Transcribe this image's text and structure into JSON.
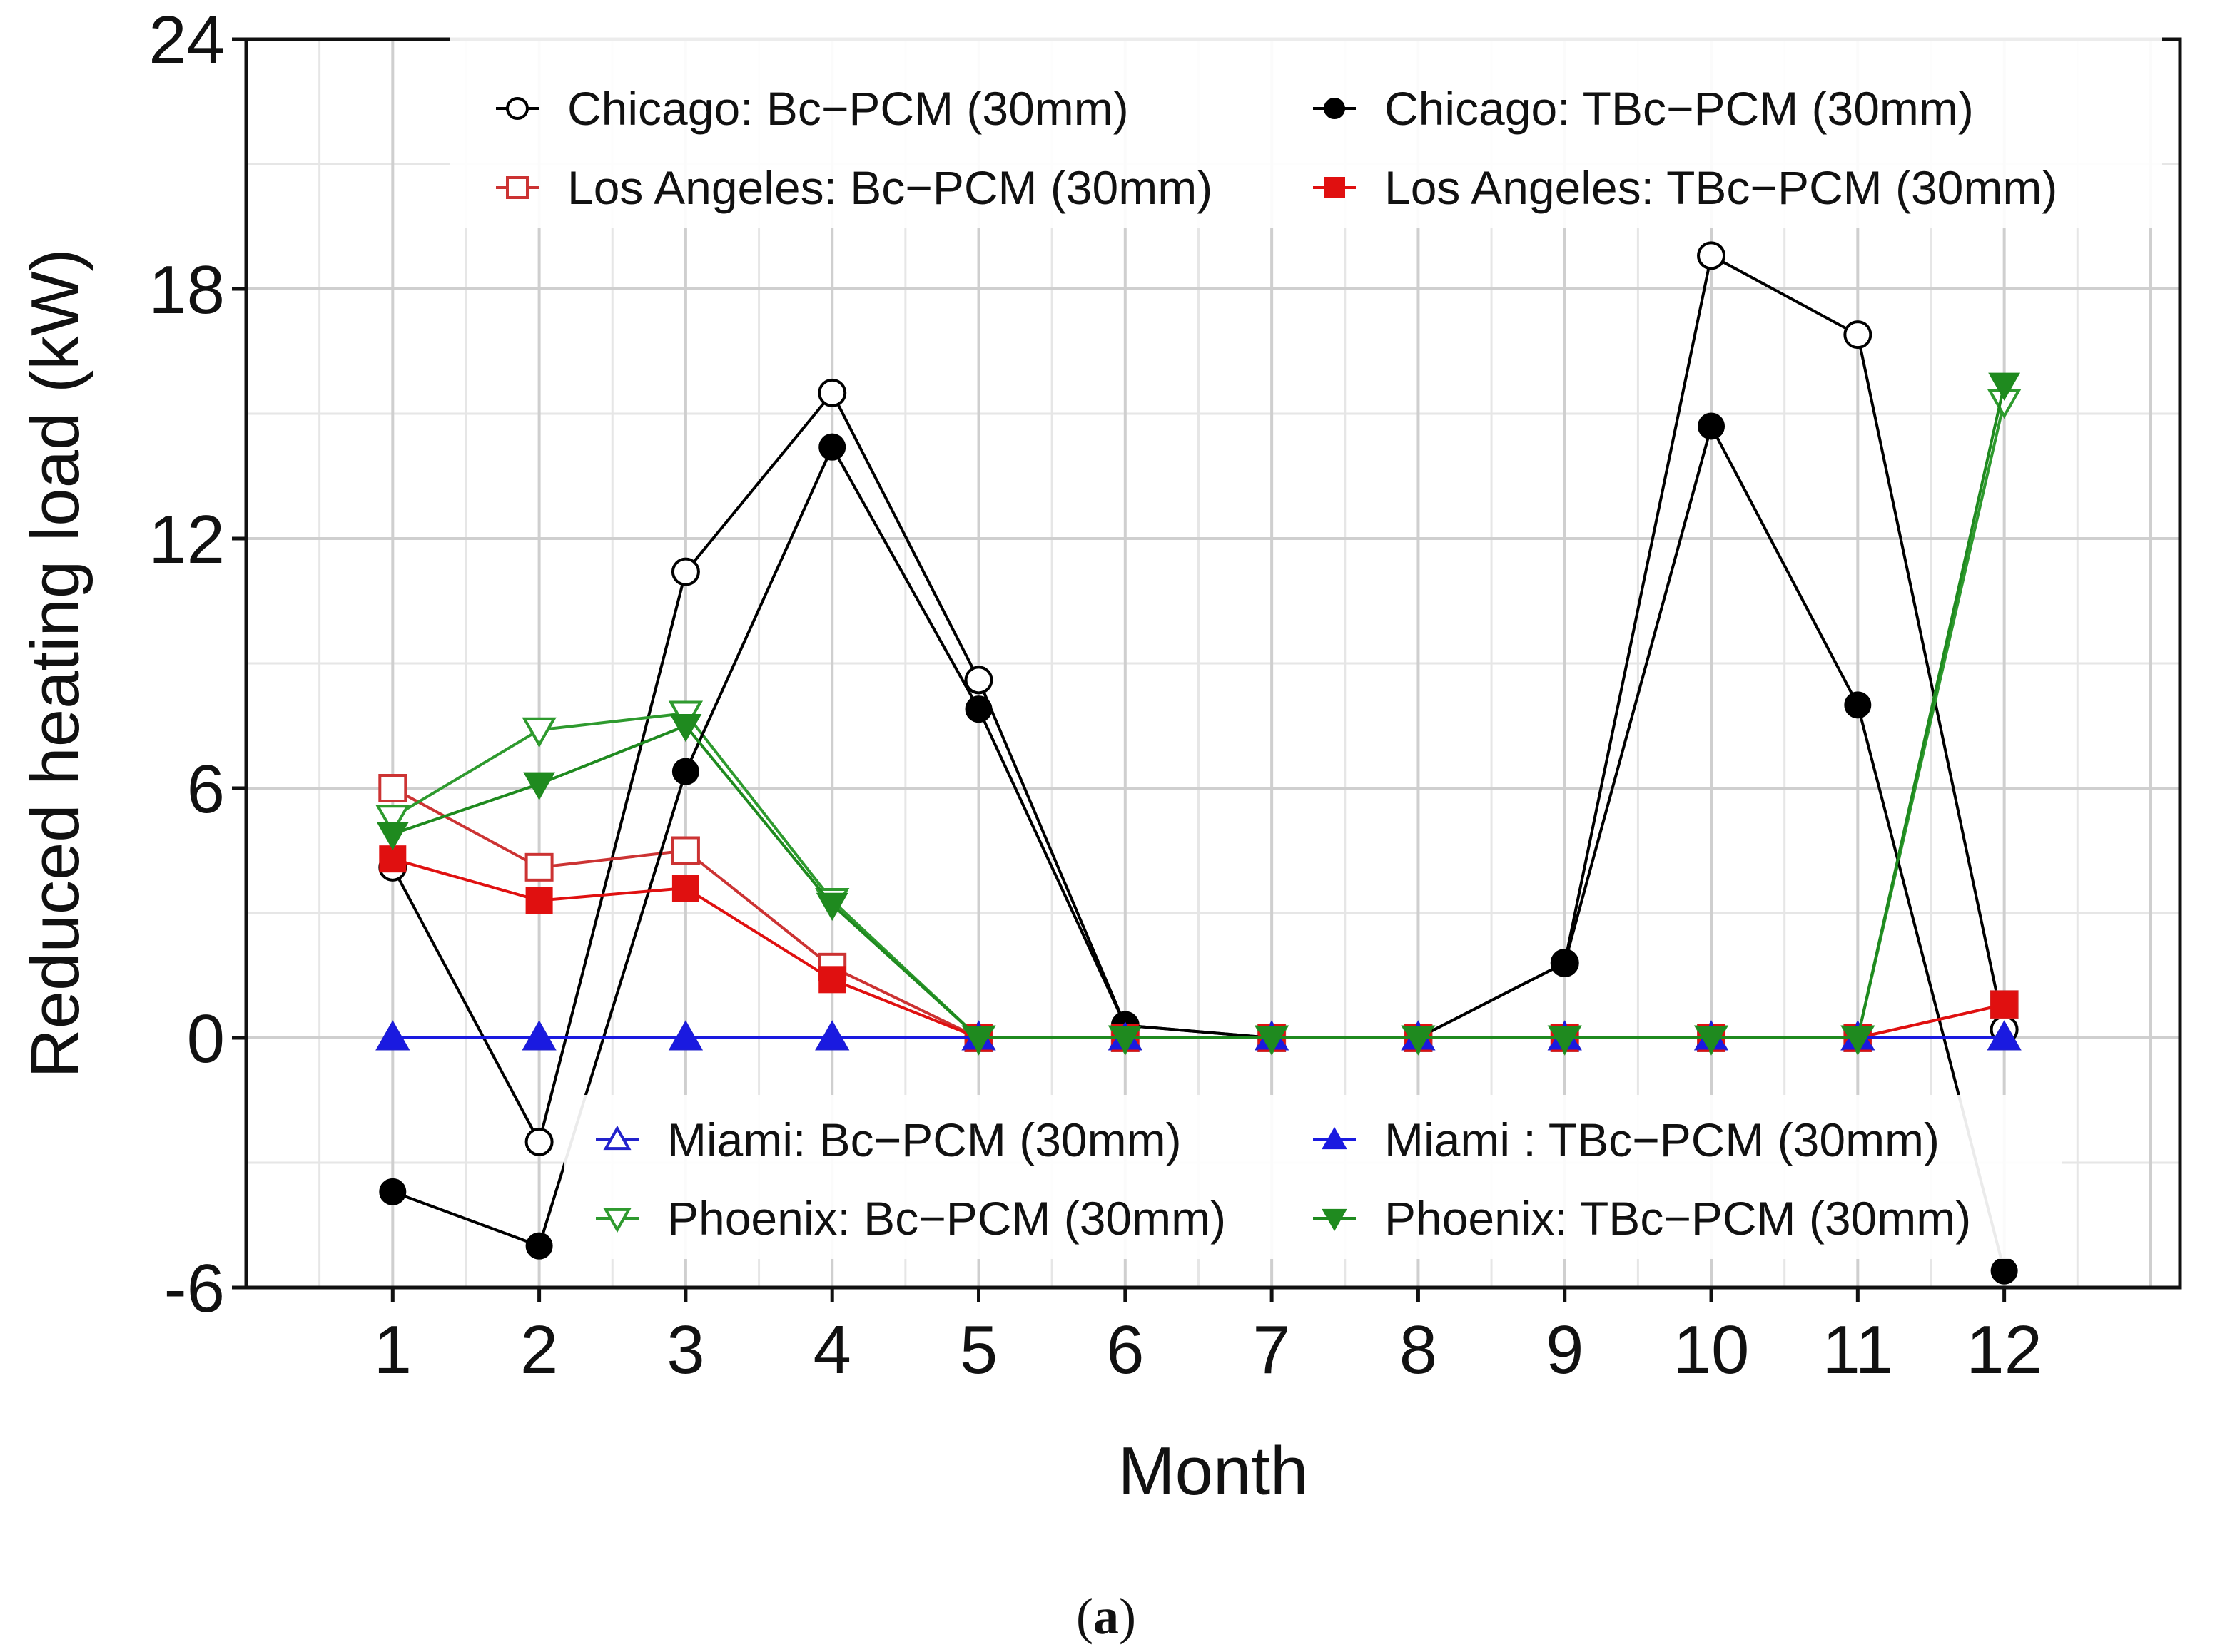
{
  "chart_data": {
    "type": "line",
    "title": "",
    "xlabel": "Month",
    "ylabel": "Reduced heating load (kW)",
    "caption_open": "(",
    "caption_letter": "a",
    "caption_close": ")",
    "xlim": [
      0,
      13.2
    ],
    "ylim": [
      -6,
      24
    ],
    "yticks": [
      -6,
      0,
      6,
      12,
      18,
      24
    ],
    "x": [
      1,
      2,
      3,
      4,
      5,
      6,
      7,
      8,
      9,
      10,
      11,
      12
    ],
    "xtick_labels": [
      "1",
      "2",
      "3",
      "4",
      "5",
      "6",
      "7",
      "8",
      "9",
      "10",
      "11",
      "12"
    ],
    "grid": true,
    "series": [
      {
        "name": "Chicago: Bc−PCM (30mm)",
        "color": "#000000",
        "marker": "circle",
        "filled": false,
        "values": [
          4.1,
          -2.5,
          11.2,
          15.5,
          8.6,
          0.3,
          0.0,
          0.0,
          1.8,
          18.8,
          16.9,
          0.2
        ]
      },
      {
        "name": "Chicago: TBc−PCM (30mm)",
        "color": "#000000",
        "marker": "circle",
        "filled": true,
        "values": [
          -3.7,
          -5.0,
          6.4,
          14.2,
          7.9,
          0.3,
          0.0,
          0.0,
          1.8,
          14.7,
          8.0,
          -5.6
        ]
      },
      {
        "name": "Los Angeles: Bc−PCM (30mm)",
        "color": "#cc3333",
        "marker": "square",
        "filled": false,
        "values": [
          6.0,
          4.1,
          4.5,
          1.7,
          0.0,
          0.0,
          0.0,
          0.0,
          0.0,
          0.0,
          0.0,
          0.8
        ]
      },
      {
        "name": "Los Angeles: TBc−PCM (30mm)",
        "color": "#e01010",
        "marker": "square",
        "filled": true,
        "values": [
          4.3,
          3.3,
          3.6,
          1.4,
          0.0,
          0.0,
          0.0,
          0.0,
          0.0,
          0.0,
          0.0,
          0.8
        ]
      },
      {
        "name": "Miami: Bc−PCM (30mm)",
        "color": "#2222cc",
        "marker": "triangle-up",
        "filled": false,
        "values": [
          0,
          0,
          0,
          0,
          0,
          0,
          0,
          0,
          0,
          0,
          0,
          0
        ]
      },
      {
        "name": "Miami : TBc−PCM (30mm)",
        "color": "#1a1ae0",
        "marker": "triangle-up",
        "filled": true,
        "values": [
          0,
          0,
          0,
          0,
          0,
          0,
          0,
          0,
          0,
          0,
          0,
          0
        ]
      },
      {
        "name": "Phoenix: Bc−PCM (30mm)",
        "color": "#2e9a2e",
        "marker": "triangle-down",
        "filled": false,
        "values": [
          5.3,
          7.4,
          7.8,
          3.3,
          0.0,
          0.0,
          0.0,
          0.0,
          0.0,
          0.0,
          0.0,
          15.3
        ]
      },
      {
        "name": "Phoenix: TBc−PCM (30mm)",
        "color": "#1f8a1f",
        "marker": "triangle-down",
        "filled": true,
        "values": [
          4.9,
          6.1,
          7.5,
          3.2,
          0.0,
          0.0,
          0.0,
          0.0,
          0.0,
          0.0,
          0.0,
          15.7
        ]
      }
    ],
    "legends": [
      {
        "placement": "top",
        "entries": [
          0,
          1,
          2,
          3
        ]
      },
      {
        "placement": "bottom",
        "entries": [
          4,
          5,
          6,
          7
        ]
      }
    ]
  }
}
